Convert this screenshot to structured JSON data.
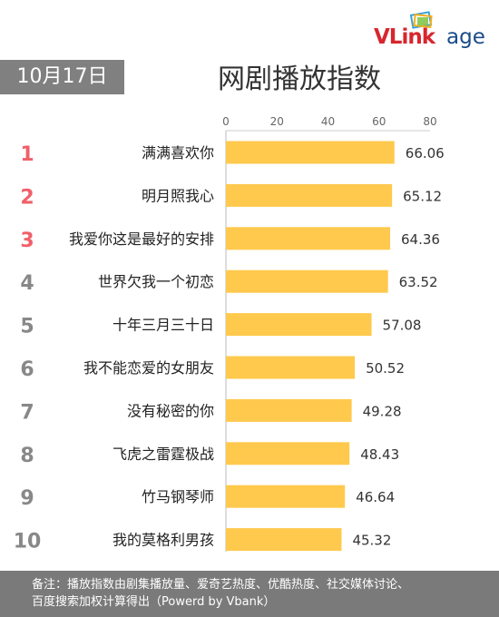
{
  "brand": {
    "logo_text": "VLinkage",
    "logo_colors": {
      "v_link": "#d7262e",
      "age": "#1a4c8a"
    }
  },
  "date_label": "10月17日",
  "chart_data": {
    "type": "bar",
    "orientation": "horizontal",
    "title": "网剧播放指数",
    "xlim": [
      0,
      80
    ],
    "x_ticks": [
      0,
      20,
      40,
      60,
      80
    ],
    "ranks": [
      "1",
      "2",
      "3",
      "4",
      "5",
      "6",
      "7",
      "8",
      "9",
      "10"
    ],
    "categories": [
      "满满喜欢你",
      "明月照我心",
      "我爱你这是最好的安排",
      "世界欠我一个初恋",
      "十年三月三十日",
      "我不能恋爱的女朋友",
      "没有秘密的你",
      "飞虎之雷霆极战",
      "竹马钢琴师",
      "我的莫格利男孩"
    ],
    "values": [
      66.06,
      65.12,
      64.36,
      63.52,
      57.08,
      50.52,
      49.28,
      48.43,
      46.64,
      45.32
    ],
    "value_labels": [
      "66.06",
      "65.12",
      "64.36",
      "63.52",
      "57.08",
      "50.52",
      "49.28",
      "48.43",
      "46.64",
      "45.32"
    ],
    "legend": "none",
    "grid": false,
    "colors": {
      "bar": "#ffc94d",
      "rank_top3": "#f0606a",
      "rank_other": "#888888"
    }
  },
  "footnote": {
    "line1": "备注：播放指数由剧集播放量、爱奇艺热度、优酷热度、社交媒体讨论、",
    "line2": "百度搜索加权计算得出（Powerd by Vbank）"
  }
}
